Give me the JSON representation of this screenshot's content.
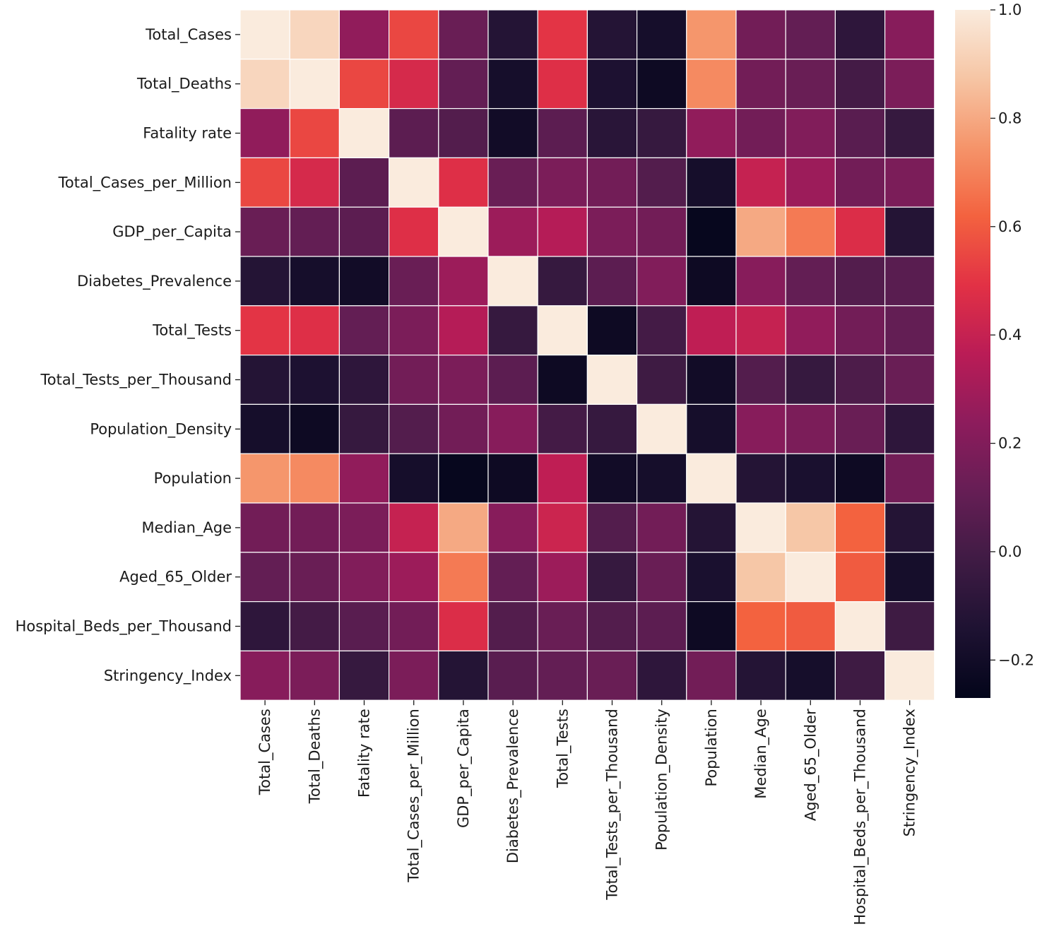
{
  "chart_data": {
    "type": "heatmap",
    "title": "",
    "xlabel": "",
    "ylabel": "",
    "row_labels": [
      "Total_Cases",
      "Total_Deaths",
      "Fatality rate",
      "Total_Cases_per_Million",
      "GDP_per_Capita",
      "Diabetes_Prevalence",
      "Total_Tests",
      "Total_Tests_per_Thousand",
      "Population_Density",
      "Population",
      "Median_Age",
      "Aged_65_Older",
      "Hospital_Beds_per_Thousand",
      "Stringency_Index"
    ],
    "col_labels": [
      "Total_Cases",
      "Total_Deaths",
      "Fatality rate",
      "Total_Cases_per_Million",
      "GDP_per_Capita",
      "Diabetes_Prevalence",
      "Total_Tests",
      "Total_Tests_per_Thousand",
      "Population_Density",
      "Population",
      "Median_Age",
      "Aged_65_Older",
      "Hospital_Beds_per_Thousand",
      "Stringency_Index"
    ],
    "values": [
      [
        1.0,
        0.93,
        0.25,
        0.55,
        0.12,
        -0.12,
        0.5,
        -0.12,
        -0.18,
        0.75,
        0.15,
        0.1,
        -0.08,
        0.22
      ],
      [
        0.93,
        1.0,
        0.55,
        0.45,
        0.1,
        -0.18,
        0.48,
        -0.15,
        -0.22,
        0.72,
        0.15,
        0.12,
        0.0,
        0.18
      ],
      [
        0.25,
        0.55,
        1.0,
        0.08,
        0.05,
        -0.2,
        0.08,
        -0.1,
        -0.05,
        0.25,
        0.15,
        0.2,
        0.07,
        -0.05
      ],
      [
        0.55,
        0.45,
        0.08,
        1.0,
        0.48,
        0.12,
        0.18,
        0.15,
        0.05,
        -0.18,
        0.4,
        0.28,
        0.15,
        0.18
      ],
      [
        0.12,
        0.1,
        0.08,
        0.48,
        1.0,
        0.28,
        0.35,
        0.18,
        0.15,
        -0.25,
        0.8,
        0.68,
        0.47,
        -0.12
      ],
      [
        -0.12,
        -0.18,
        -0.2,
        0.12,
        0.28,
        1.0,
        -0.05,
        0.08,
        0.2,
        -0.22,
        0.22,
        0.1,
        0.05,
        0.07
      ],
      [
        0.5,
        0.48,
        0.1,
        0.18,
        0.35,
        -0.05,
        1.0,
        -0.22,
        0.0,
        0.38,
        0.4,
        0.25,
        0.15,
        0.1
      ],
      [
        -0.12,
        -0.15,
        -0.08,
        0.15,
        0.18,
        0.08,
        -0.22,
        1.0,
        -0.02,
        -0.2,
        0.05,
        -0.05,
        0.03,
        0.12
      ],
      [
        -0.18,
        -0.22,
        -0.05,
        0.05,
        0.15,
        0.22,
        0.0,
        -0.05,
        1.0,
        -0.18,
        0.22,
        0.18,
        0.12,
        -0.08
      ],
      [
        0.75,
        0.72,
        0.25,
        -0.18,
        -0.25,
        -0.22,
        0.38,
        -0.2,
        -0.18,
        1.0,
        -0.12,
        -0.16,
        -0.22,
        0.15
      ],
      [
        0.15,
        0.15,
        0.18,
        0.4,
        0.8,
        0.22,
        0.42,
        0.05,
        0.15,
        -0.12,
        1.0,
        0.88,
        0.62,
        -0.12
      ],
      [
        0.1,
        0.12,
        0.2,
        0.28,
        0.68,
        0.1,
        0.28,
        -0.05,
        0.12,
        -0.16,
        0.88,
        1.0,
        0.6,
        -0.18
      ],
      [
        -0.08,
        0.0,
        0.07,
        0.15,
        0.47,
        0.05,
        0.12,
        0.05,
        0.08,
        -0.22,
        0.62,
        0.6,
        1.0,
        -0.02
      ],
      [
        0.22,
        0.18,
        -0.05,
        0.18,
        -0.12,
        0.07,
        0.1,
        0.12,
        -0.08,
        0.15,
        -0.12,
        -0.18,
        -0.02,
        1.0
      ]
    ],
    "vmin": -0.27,
    "vmax": 1.0,
    "colorscale": "rocket",
    "colorbar": {
      "ticks": [
        1.0,
        0.8,
        0.6,
        0.4,
        0.2,
        0.0,
        -0.2
      ],
      "tick_labels": [
        "1.0",
        "0.8",
        "0.6",
        "0.4",
        "0.2",
        "0.0",
        "−0.2"
      ]
    },
    "grid": true,
    "legend": "right"
  }
}
